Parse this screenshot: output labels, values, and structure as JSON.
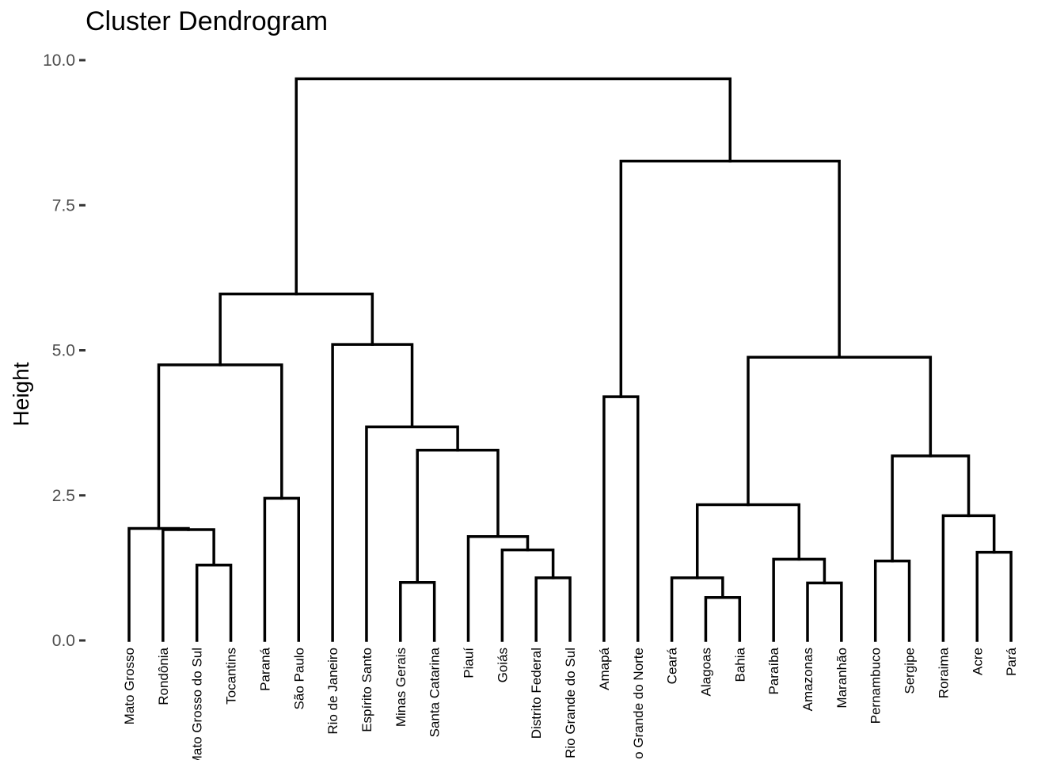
{
  "chart_data": {
    "type": "dendrogram",
    "title": "Cluster Dendrogram",
    "ylabel": "Height",
    "xlabel": "",
    "ylim": [
      0,
      10
    ],
    "yticks": [
      0,
      2.5,
      5,
      7.5,
      10
    ],
    "ytick_labels": [
      "0.0",
      "2.5",
      "5.0",
      "7.5",
      "10.0"
    ],
    "grid": false,
    "leaves": [
      "Mato Grosso",
      "Rondônia",
      "Mato Grosso do Sul",
      "Tocantins",
      "Paraná",
      "São Paulo",
      "Rio de Janeiro",
      "Espírito Santo",
      "Minas Gerais",
      "Santa Catarina",
      "Piauí",
      "Goiás",
      "Distrito Federal",
      "Rio Grande do Sul",
      "Amapá",
      "Rio Grande do Norte",
      "Ceará",
      "Alagoas",
      "Bahia",
      "Paraíba",
      "Amazonas",
      "Maranhão",
      "Pernambuco",
      "Sergipe",
      "Roraima",
      "Acre",
      "Pará"
    ],
    "merges": [
      {
        "id": "m1",
        "left": "Mato Grosso do Sul",
        "right": "Tocantins",
        "height": 1.3
      },
      {
        "id": "m2",
        "left": "Rondônia",
        "right": "m1",
        "height": 1.91
      },
      {
        "id": "m3",
        "left": "Mato Grosso",
        "right": "m2",
        "height": 1.93
      },
      {
        "id": "m4",
        "left": "Paraná",
        "right": "São Paulo",
        "height": 2.45
      },
      {
        "id": "m5",
        "left": "m3",
        "right": "m4",
        "height": 4.75
      },
      {
        "id": "m6",
        "left": "Minas Gerais",
        "right": "Santa Catarina",
        "height": 1.0
      },
      {
        "id": "m7",
        "left": "Distrito Federal",
        "right": "Rio Grande do Sul",
        "height": 1.08
      },
      {
        "id": "m8",
        "left": "Goiás",
        "right": "m7",
        "height": 1.56
      },
      {
        "id": "m9",
        "left": "Piauí",
        "right": "m8",
        "height": 1.79
      },
      {
        "id": "m10",
        "left": "m6",
        "right": "m9",
        "height": 3.28
      },
      {
        "id": "m11",
        "left": "Espírito Santo",
        "right": "m10",
        "height": 3.68
      },
      {
        "id": "m12",
        "left": "Rio de Janeiro",
        "right": "m11",
        "height": 5.1
      },
      {
        "id": "m13",
        "left": "m5",
        "right": "m12",
        "height": 5.97
      },
      {
        "id": "m14",
        "left": "Amapá",
        "right": "Rio Grande do Norte",
        "height": 4.2
      },
      {
        "id": "m15",
        "left": "Alagoas",
        "right": "Bahia",
        "height": 0.74
      },
      {
        "id": "m16",
        "left": "Ceará",
        "right": "m15",
        "height": 1.08
      },
      {
        "id": "m17",
        "left": "Amazonas",
        "right": "Maranhão",
        "height": 0.99
      },
      {
        "id": "m18",
        "left": "Paraíba",
        "right": "m17",
        "height": 1.4
      },
      {
        "id": "m19",
        "left": "m16",
        "right": "m18",
        "height": 2.34
      },
      {
        "id": "m20",
        "left": "Pernambuco",
        "right": "Sergipe",
        "height": 1.37
      },
      {
        "id": "m21",
        "left": "Acre",
        "right": "Pará",
        "height": 1.52
      },
      {
        "id": "m22",
        "left": "Roraima",
        "right": "m21",
        "height": 2.15
      },
      {
        "id": "m23",
        "left": "m20",
        "right": "m22",
        "height": 3.18
      },
      {
        "id": "m24",
        "left": "m19",
        "right": "m23",
        "height": 4.88
      },
      {
        "id": "m25",
        "left": "m14",
        "right": "m24",
        "height": 8.26
      },
      {
        "id": "m26",
        "left": "m13",
        "right": "m25",
        "height": 9.68
      }
    ]
  }
}
